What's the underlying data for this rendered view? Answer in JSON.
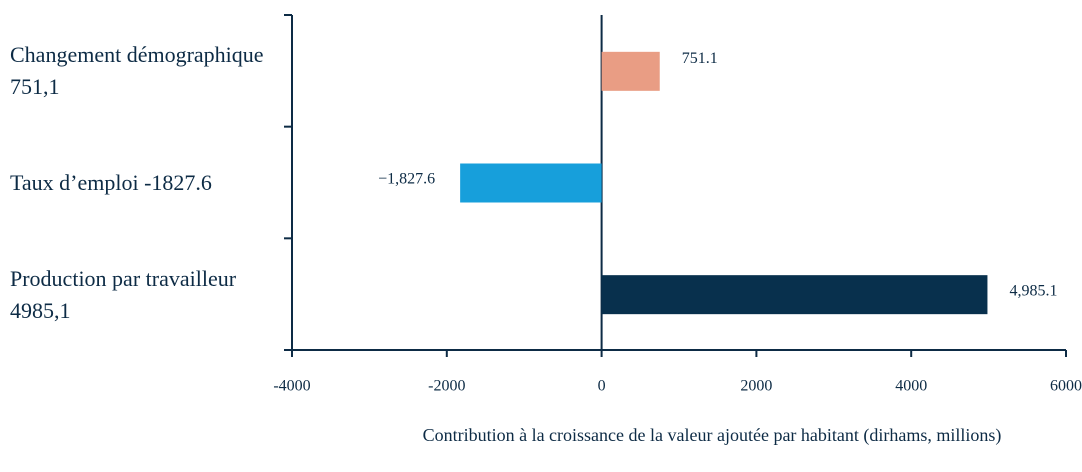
{
  "chart_data": {
    "type": "barh",
    "categories": [
      "Changement démographique 751,1",
      "Taux d’emploi -1827.6",
      "Production par travailleur 4985,1"
    ],
    "values": [
      751.1,
      -1827.6,
      4985.1
    ],
    "value_labels": [
      "751.1",
      "−1,827.6",
      "4,985.1"
    ],
    "colors": [
      "#e99d84",
      "#179fdb",
      "#08304d"
    ],
    "xlabel": "Contribution à la croissance de la valeur ajoutée par habitant (dirhams, millions)",
    "xlim": [
      -4000,
      6000
    ],
    "xticks": [
      -4000,
      -2000,
      0,
      2000,
      4000,
      6000
    ]
  }
}
